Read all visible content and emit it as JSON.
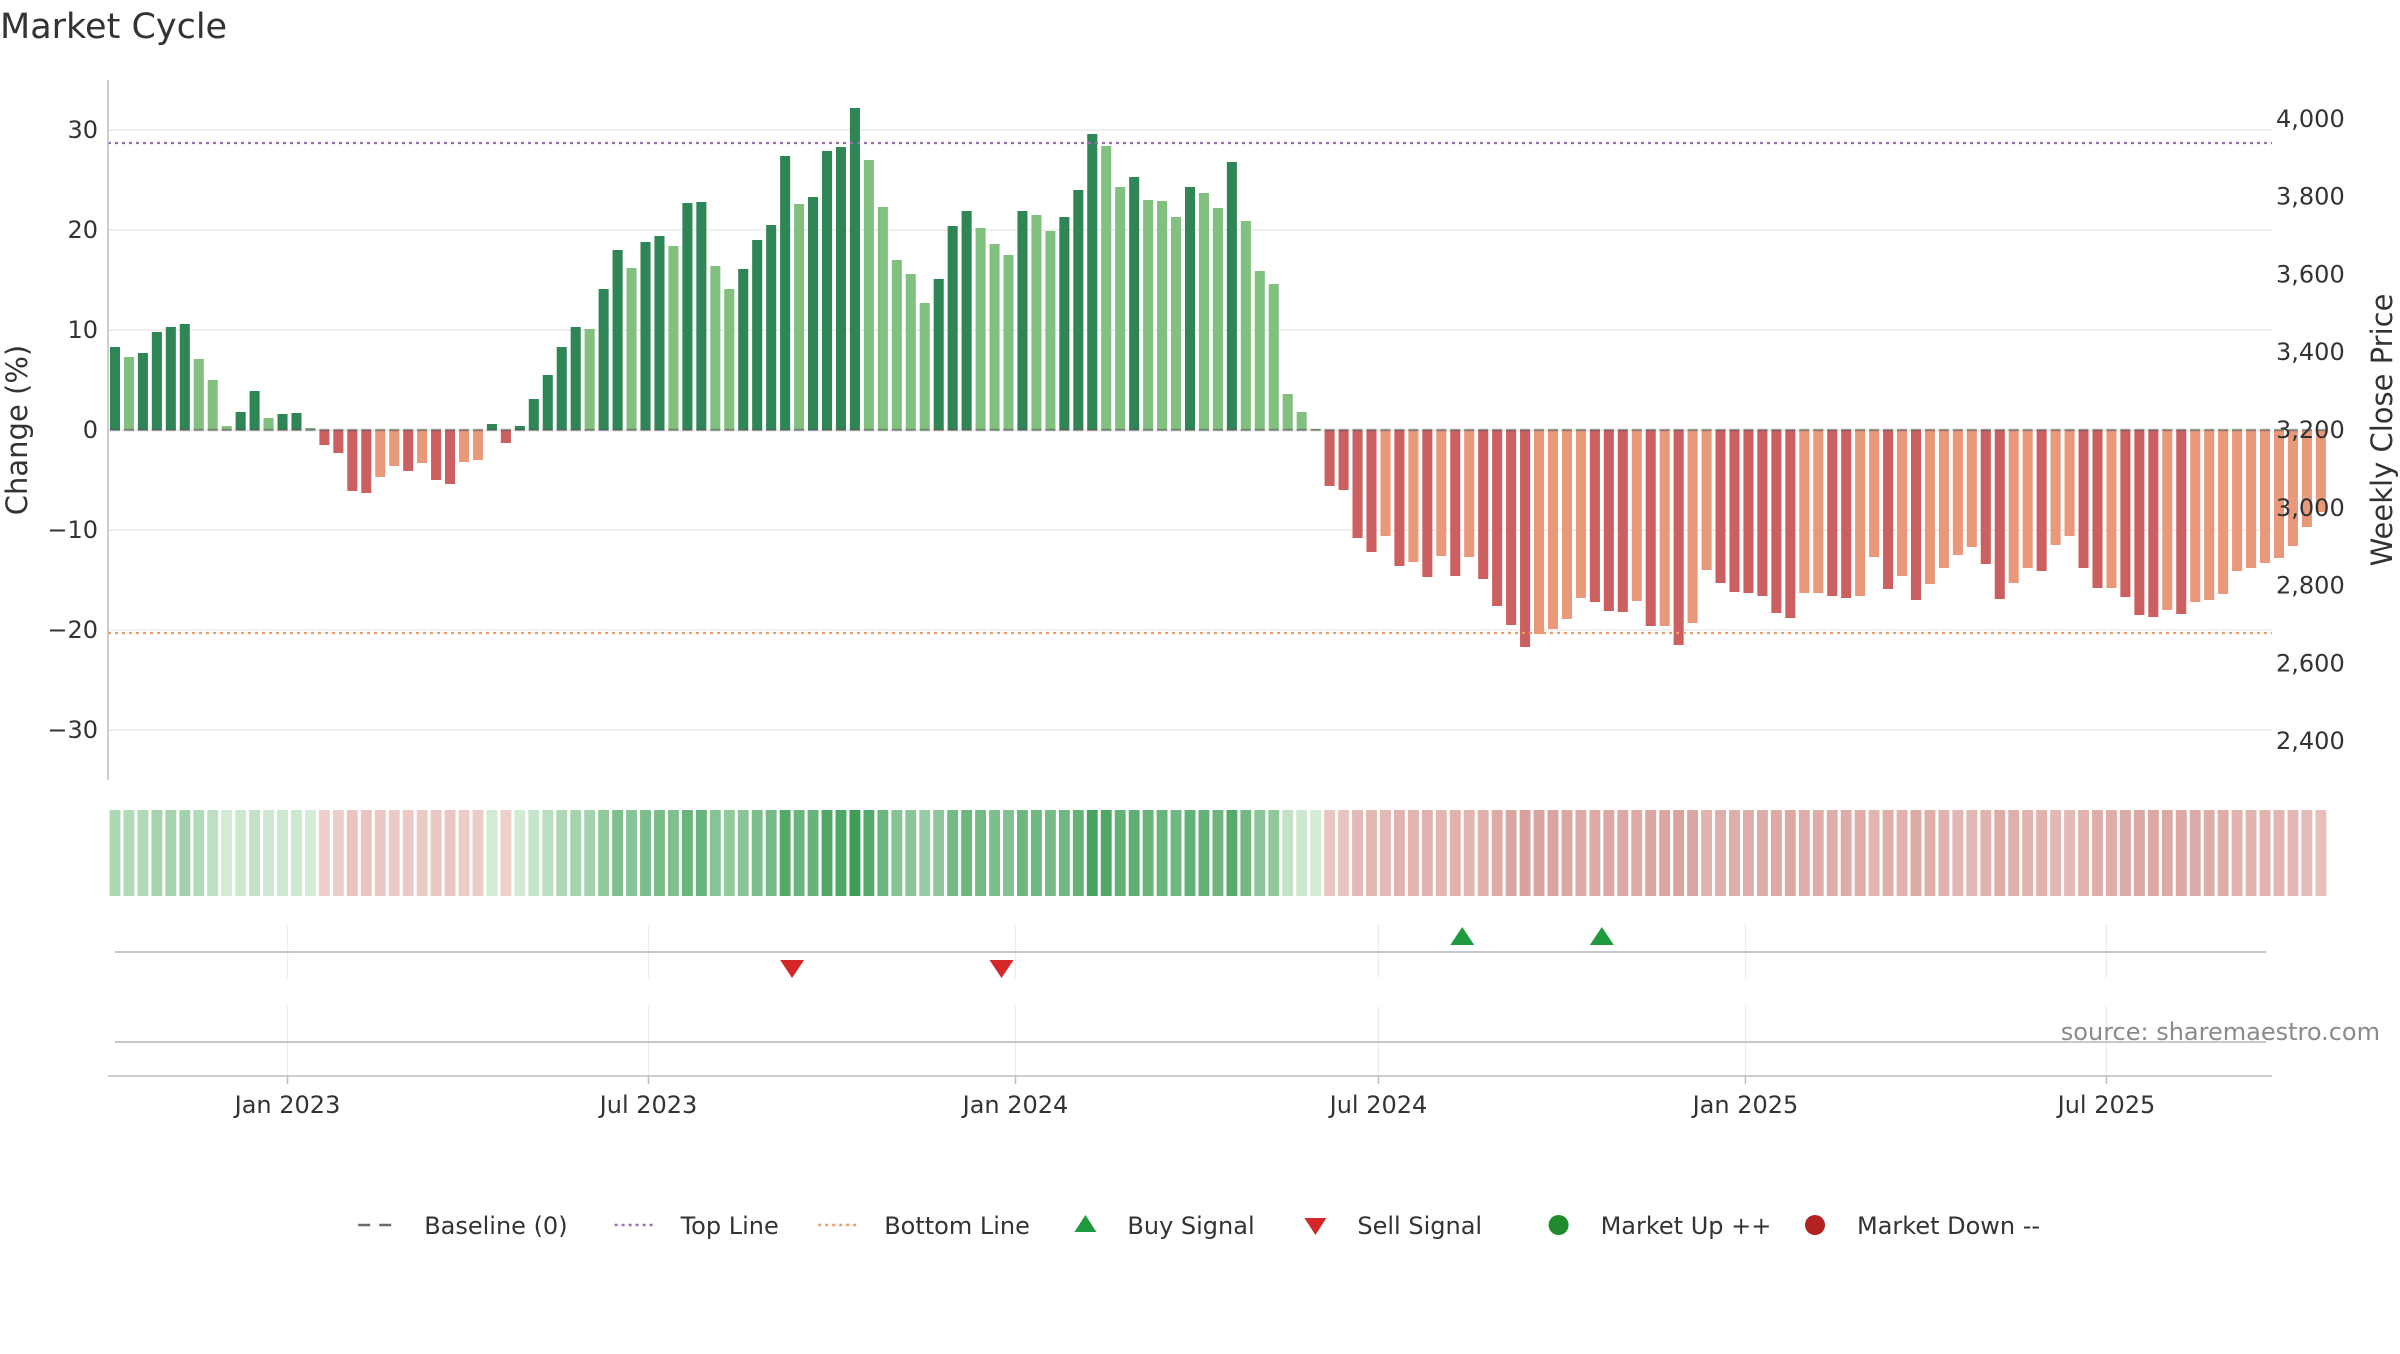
{
  "chart_data": {
    "type": "bar",
    "title": "Market Cycle",
    "ylabel_left": "Change (%)",
    "ylabel_right": "Weekly Close Price",
    "ylim_left": [
      -35,
      35
    ],
    "ylim_right": [
      2300,
      4100
    ],
    "y_ticks_left": [
      30,
      20,
      10,
      0,
      -10,
      -20,
      -30
    ],
    "y_tick_labels_left": [
      "30",
      "20",
      "10",
      "0",
      "−10",
      "−20",
      "−30"
    ],
    "y_ticks_right": [
      4000,
      3800,
      3600,
      3400,
      3200,
      3000,
      2800,
      2600,
      2400
    ],
    "y_tick_labels_right": [
      "4,000",
      "3,800",
      "3,600",
      "3,400",
      "3,200",
      "3,000",
      "2,800",
      "2,600",
      "2,400"
    ],
    "x_range": [
      "2022-10-03",
      "2025-09-22"
    ],
    "x_ticks": [
      {
        "date": "2023-01-01",
        "label": "Jan 2023"
      },
      {
        "date": "2023-07-01",
        "label": "Jul 2023"
      },
      {
        "date": "2024-01-01",
        "label": "Jan 2024"
      },
      {
        "date": "2024-07-01",
        "label": "Jul 2024"
      },
      {
        "date": "2025-01-01",
        "label": "Jan 2025"
      },
      {
        "date": "2025-07-01",
        "label": "Jul 2025"
      }
    ],
    "start_week": "2022-10-03",
    "top_line": 28.7,
    "bottom_line": -20.3,
    "baseline": 0,
    "values": [
      8.3,
      7.3,
      7.7,
      9.8,
      10.3,
      10.6,
      7.1,
      5.0,
      0.4,
      1.8,
      3.9,
      1.2,
      1.6,
      1.7,
      0.2,
      -1.5,
      -2.3,
      -6.1,
      -6.3,
      -4.7,
      -3.6,
      -4.1,
      -3.3,
      -5.0,
      -5.4,
      -3.2,
      -3.0,
      0.6,
      -1.3,
      0.4,
      3.1,
      5.5,
      8.3,
      10.3,
      10.1,
      14.1,
      18.0,
      16.2,
      18.8,
      19.4,
      18.4,
      22.7,
      22.8,
      16.4,
      14.1,
      16.1,
      19.0,
      20.5,
      27.4,
      22.6,
      23.3,
      27.9,
      28.3,
      32.2,
      27.0,
      22.3,
      17.0,
      15.6,
      12.7,
      15.1,
      20.4,
      21.9,
      20.2,
      18.6,
      17.5,
      21.9,
      21.5,
      19.9,
      21.3,
      24.0,
      29.6,
      28.4,
      24.3,
      25.3,
      23.0,
      22.9,
      21.3,
      24.3,
      23.7,
      22.2,
      26.8,
      20.9,
      15.9,
      14.6,
      3.6,
      1.8,
      0.1,
      -5.6,
      -6.0,
      -10.8,
      -12.2,
      -10.6,
      -13.6,
      -13.2,
      -14.7,
      -12.6,
      -14.6,
      -12.7,
      -14.9,
      -17.6,
      -19.5,
      -21.7,
      -20.4,
      -19.9,
      -18.9,
      -16.8,
      -17.2,
      -18.1,
      -18.2,
      -17.1,
      -19.6,
      -19.6,
      -21.5,
      -19.3,
      -14.0,
      -15.3,
      -16.2,
      -16.3,
      -16.6,
      -18.3,
      -18.8,
      -16.3,
      -16.3,
      -16.6,
      -16.8,
      -16.6,
      -12.7,
      -15.9,
      -14.6,
      -17.0,
      -15.4,
      -13.8,
      -12.5,
      -11.7,
      -13.4,
      -16.9,
      -15.3,
      -13.8,
      -14.1,
      -11.5,
      -10.6,
      -13.8,
      -15.8,
      -15.8,
      -16.7,
      -18.5,
      -18.7,
      -18.0,
      -18.4,
      -17.2,
      -17.0,
      -16.4,
      -14.1,
      -13.8,
      -13.3,
      -12.8,
      -11.6,
      -9.7,
      -8.2
    ]
  },
  "signals": {
    "buy": [
      "2024-08-12",
      "2024-10-21"
    ],
    "sell": [
      "2023-09-11",
      "2023-12-25"
    ]
  },
  "legend": [
    {
      "label": "Baseline (0)",
      "style": "dash",
      "color": "#6b6b6b"
    },
    {
      "label": "Top Line",
      "style": "dot",
      "color": "#9a6fb0"
    },
    {
      "label": "Bottom Line",
      "style": "dot",
      "color": "#eb9c6a"
    },
    {
      "label": "Buy Signal",
      "style": "triangle-up",
      "color": "#1f9a3f"
    },
    {
      "label": "Sell Signal",
      "style": "triangle-down",
      "color": "#d62728"
    },
    {
      "label": "Market Up ++",
      "style": "circle",
      "color": "#1f8a2e"
    },
    {
      "label": "Market Down --",
      "style": "circle",
      "color": "#b22222"
    }
  ],
  "colors": {
    "pos_strong": "#2e8555",
    "pos_light": "#81c07e",
    "neg_strong": "#cc5f5f",
    "neg_light": "#e9997a",
    "grid": "#e6e6e6",
    "axis": "#bdbdbd"
  },
  "source_text": "source: sharemaestro.com"
}
